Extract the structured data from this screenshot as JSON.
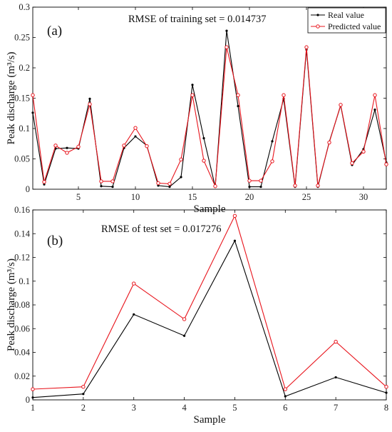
{
  "colors": {
    "real": "#000000",
    "predicted": "#e8141c",
    "axis": "#000000",
    "background": "#ffffff"
  },
  "legend": {
    "real_label": "Real value",
    "predicted_label": "Predicted value"
  },
  "chart_data": [
    {
      "type": "line",
      "panel_label": "(a)",
      "annotation": "RMSE of training set = 0.014737",
      "xlabel": "Sample",
      "ylabel": "Peak discharge (m³/s)",
      "xlim": [
        1,
        32
      ],
      "ylim": [
        0,
        0.3
      ],
      "xticks": [
        5,
        10,
        15,
        20,
        25,
        30
      ],
      "yticks": [
        0,
        0.05,
        0.1,
        0.15,
        0.2,
        0.25,
        0.3
      ],
      "ytick_labels": [
        "0",
        "0.05",
        "0.1",
        "0.15",
        "0.2",
        "0.25",
        "0.3"
      ],
      "legend_position": "top-right",
      "x": [
        1,
        2,
        3,
        4,
        5,
        6,
        7,
        8,
        9,
        10,
        11,
        12,
        13,
        14,
        15,
        16,
        17,
        18,
        19,
        20,
        21,
        22,
        23,
        24,
        25,
        26,
        27,
        28,
        29,
        30,
        31,
        32
      ],
      "series": [
        {
          "name": "Real value",
          "values": [
            0.126,
            0.008,
            0.067,
            0.068,
            0.067,
            0.149,
            0.005,
            0.004,
            0.068,
            0.087,
            0.072,
            0.006,
            0.004,
            0.02,
            0.172,
            0.084,
            0.004,
            0.261,
            0.137,
            0.004,
            0.004,
            0.079,
            0.149,
            0.004,
            0.23,
            0.004,
            0.078,
            0.138,
            0.04,
            0.066,
            0.131,
            0.044
          ]
        },
        {
          "name": "Predicted value",
          "values": [
            0.155,
            0.012,
            0.072,
            0.06,
            0.07,
            0.14,
            0.013,
            0.013,
            0.072,
            0.101,
            0.071,
            0.01,
            0.009,
            0.049,
            0.155,
            0.047,
            0.005,
            0.234,
            0.155,
            0.014,
            0.014,
            0.046,
            0.155,
            0.006,
            0.234,
            0.006,
            0.077,
            0.139,
            0.043,
            0.062,
            0.155,
            0.041
          ]
        }
      ]
    },
    {
      "type": "line",
      "panel_label": "(b)",
      "annotation": "RMSE of test set = 0.017276",
      "xlabel": "Sample",
      "ylabel": "Peak discharge (m³/s)",
      "xlim": [
        1,
        8
      ],
      "ylim": [
        0,
        0.16
      ],
      "xticks": [
        1,
        2,
        3,
        4,
        5,
        6,
        7,
        8
      ],
      "yticks": [
        0,
        0.02,
        0.04,
        0.06,
        0.08,
        0.1,
        0.12,
        0.14,
        0.16
      ],
      "ytick_labels": [
        "0",
        "0.02",
        "0.04",
        "0.06",
        "0.08",
        "0.1",
        "0.12",
        "0.14",
        "0.16"
      ],
      "x": [
        1,
        2,
        3,
        4,
        5,
        6,
        7,
        8
      ],
      "series": [
        {
          "name": "Real value",
          "values": [
            0.002,
            0.005,
            0.072,
            0.054,
            0.134,
            0.003,
            0.019,
            0.006
          ]
        },
        {
          "name": "Predicted value",
          "values": [
            0.009,
            0.011,
            0.098,
            0.068,
            0.155,
            0.009,
            0.049,
            0.011
          ]
        }
      ]
    }
  ]
}
